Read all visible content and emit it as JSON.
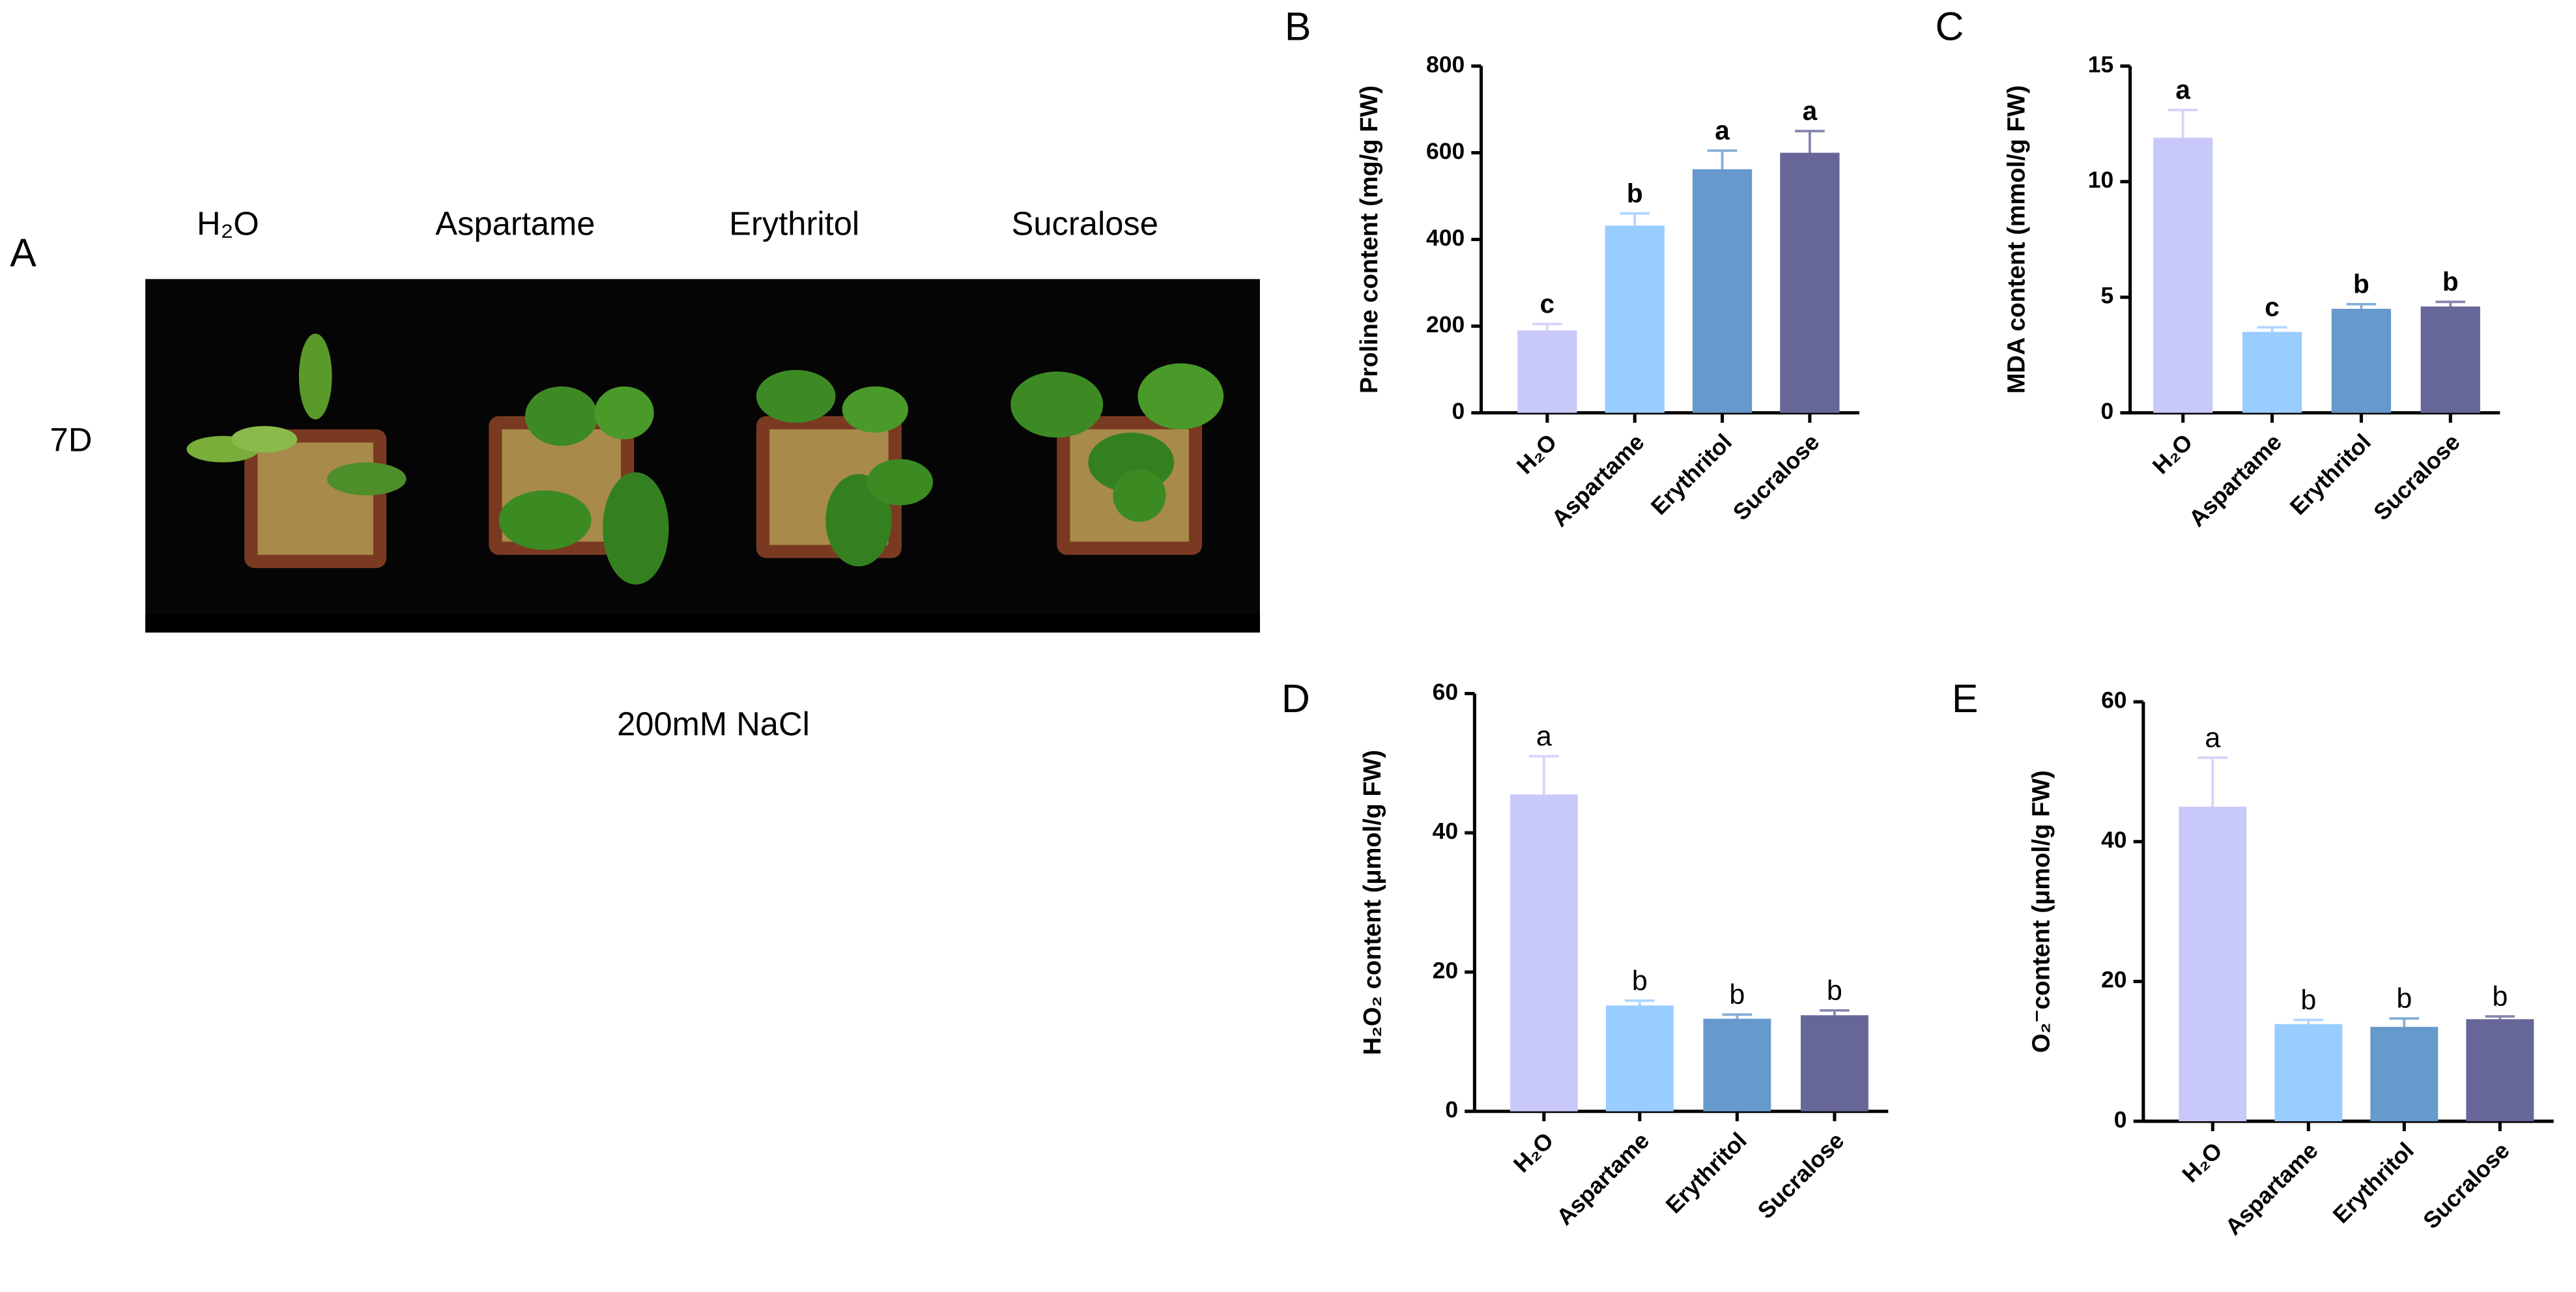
{
  "photo_panel": {
    "panel": "A",
    "columns": [
      "H₂O",
      "Aspartame",
      "Erythritol",
      "Sucralose"
    ],
    "row": "7D",
    "treatment": "200mM NaCl"
  },
  "chart_data": [
    {
      "type": "bar",
      "panel": "B",
      "y_label": "Proline content (mg/g FW)",
      "categories": [
        "H₂O",
        "Aspartame",
        "Erythritol",
        "Sucralose"
      ],
      "values": [
        190,
        432,
        562,
        600
      ],
      "errors": [
        15,
        28,
        43,
        50
      ],
      "annotations": [
        "c",
        "b",
        "a",
        "a"
      ],
      "colors": [
        "#c9c9f9",
        "#99ccff",
        "#6699cc",
        "#666699"
      ],
      "ylim": [
        0,
        800
      ],
      "yticks": [
        0,
        200,
        400,
        600,
        800
      ]
    },
    {
      "type": "bar",
      "panel": "C",
      "y_label": "MDA content (mmol/g FW)",
      "categories": [
        "H₂O",
        "Aspartame",
        "Erythritol",
        "Sucralose"
      ],
      "values": [
        11.9,
        3.5,
        4.5,
        4.6
      ],
      "errors": [
        1.2,
        0.2,
        0.2,
        0.2
      ],
      "annotations": [
        "a",
        "c",
        "b",
        "b"
      ],
      "colors": [
        "#c9c9f9",
        "#99ccff",
        "#6699cc",
        "#666699"
      ],
      "ylim": [
        0,
        15
      ],
      "yticks": [
        0,
        5,
        10,
        15
      ]
    },
    {
      "type": "bar",
      "panel": "D",
      "y_label": "H₂O₂ content (μmol/g FW)",
      "categories": [
        "H₂O",
        "Aspartame",
        "Erythritol",
        "Sucralose"
      ],
      "values": [
        45.5,
        15.2,
        13.3,
        13.8
      ],
      "errors": [
        5.5,
        0.7,
        0.6,
        0.7
      ],
      "annotations": [
        "a",
        "b",
        "b",
        "b"
      ],
      "colors": [
        "#c9c9f9",
        "#99ccff",
        "#6699cc",
        "#666699"
      ],
      "ylim": [
        0,
        60
      ],
      "yticks": [
        0,
        20,
        40,
        60
      ]
    },
    {
      "type": "bar",
      "panel": "E",
      "y_label": "O₂⁻content (μmol/g FW)",
      "categories": [
        "H₂O",
        "Aspartame",
        "Erythritol",
        "Sucralose"
      ],
      "values": [
        45,
        13.9,
        13.5,
        14.6
      ],
      "errors": [
        7,
        0.6,
        1.2,
        0.4
      ],
      "annotations": [
        "a",
        "b",
        "b",
        "b"
      ],
      "colors": [
        "#c9c9f9",
        "#99ccff",
        "#6699cc",
        "#666699"
      ],
      "ylim": [
        0,
        60
      ],
      "yticks": [
        0,
        20,
        40,
        60
      ]
    }
  ]
}
